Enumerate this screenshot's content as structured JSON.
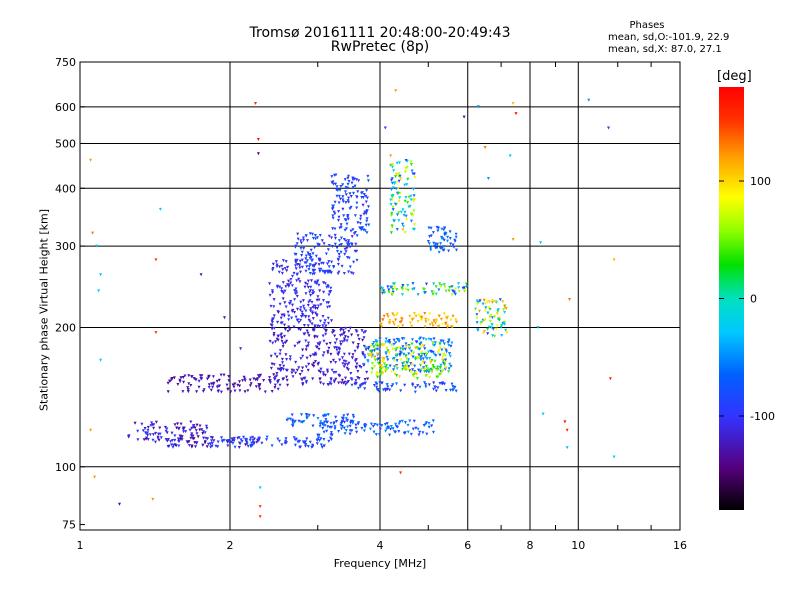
{
  "chart_data": {
    "type": "scatter",
    "title": "Tromsø 20161111 20:48:00-20:49:43",
    "subtitle": "RwPretec (8p)",
    "xlabel": "Frequency [MHz]",
    "ylabel": "Stationary phase Virtual Height [km]",
    "x_scale": "log",
    "y_scale": "log",
    "xlim": [
      1,
      16
    ],
    "ylim": [
      73,
      750
    ],
    "x_ticks": [
      "1",
      "2",
      "4",
      "6",
      "8",
      "10",
      "16"
    ],
    "x_major_grid": [
      2,
      4,
      6,
      8,
      10
    ],
    "x_minor_ticks": [
      3,
      5,
      7,
      9,
      12,
      14
    ],
    "y_ticks": [
      "75",
      "100",
      "200",
      "300",
      "400",
      "500",
      "600",
      "750"
    ],
    "y_major_grid": [
      100,
      200,
      300,
      400,
      500,
      600
    ],
    "grid": true,
    "colorbar": {
      "unit": "[deg]",
      "range": [
        -180,
        180
      ],
      "ticks": [
        "100",
        "0",
        "-100"
      ]
    },
    "phase_header": "Phases",
    "stats": {
      "o": "mean, sd,O:-101.9, 22.9",
      "x": "mean, sd,X: 87.0, 27.1"
    },
    "clusters": [
      {
        "x": [
          1.25,
          1.8
        ],
        "y": [
          113,
          125
        ],
        "phase": [
          -150,
          -100
        ]
      },
      {
        "x": [
          1.5,
          2.3
        ],
        "y": [
          110,
          116
        ],
        "phase": [
          -150,
          -95
        ]
      },
      {
        "x": [
          1.8,
          3.2
        ],
        "y": [
          110,
          116
        ],
        "phase": [
          -120,
          -80
        ]
      },
      {
        "x": [
          3.0,
          5.2
        ],
        "y": [
          117,
          126
        ],
        "phase": [
          -110,
          -60
        ]
      },
      {
        "x": [
          2.6,
          3.6
        ],
        "y": [
          122,
          130
        ],
        "phase": [
          -110,
          -60
        ]
      },
      {
        "x": [
          1.5,
          2.5
        ],
        "y": [
          145,
          158
        ],
        "phase": [
          -150,
          -120
        ]
      },
      {
        "x": [
          2.4,
          3.8
        ],
        "y": [
          150,
          200
        ],
        "phase": [
          -140,
          -110
        ]
      },
      {
        "x": [
          3.5,
          5.7
        ],
        "y": [
          145,
          152
        ],
        "phase": [
          -120,
          -70
        ]
      },
      {
        "x": [
          3.7,
          5.6
        ],
        "y": [
          160,
          190
        ],
        "phase": [
          -100,
          -40
        ]
      },
      {
        "x": [
          3.8,
          5.5
        ],
        "y": [
          155,
          185
        ],
        "phase": [
          20,
          110
        ]
      },
      {
        "x": [
          2.4,
          3.2
        ],
        "y": [
          200,
          280
        ],
        "phase": [
          -130,
          -100
        ]
      },
      {
        "x": [
          2.7,
          3.6
        ],
        "y": [
          260,
          320
        ],
        "phase": [
          -120,
          -80
        ]
      },
      {
        "x": [
          3.2,
          3.8
        ],
        "y": [
          320,
          430
        ],
        "phase": [
          -120,
          -80
        ]
      },
      {
        "x": [
          4.0,
          5.8
        ],
        "y": [
          200,
          215
        ],
        "phase": [
          90,
          130
        ]
      },
      {
        "x": [
          4.0,
          6.0
        ],
        "y": [
          235,
          250
        ],
        "phase": [
          -110,
          90
        ]
      },
      {
        "x": [
          4.2,
          4.7
        ],
        "y": [
          320,
          460
        ],
        "phase": [
          -100,
          110
        ]
      },
      {
        "x": [
          5.0,
          5.7
        ],
        "y": [
          290,
          330
        ],
        "phase": [
          -100,
          -60
        ]
      },
      {
        "x": [
          6.2,
          7.2
        ],
        "y": [
          190,
          230
        ],
        "phase": [
          -100,
          130
        ]
      }
    ],
    "scattered_points": [
      {
        "x": 1.05,
        "y": 460,
        "phase": 120
      },
      {
        "x": 1.06,
        "y": 320,
        "phase": 130
      },
      {
        "x": 1.08,
        "y": 300,
        "phase": -40
      },
      {
        "x": 1.1,
        "y": 260,
        "phase": -40
      },
      {
        "x": 1.09,
        "y": 240,
        "phase": -40
      },
      {
        "x": 1.1,
        "y": 170,
        "phase": -40
      },
      {
        "x": 1.05,
        "y": 120,
        "phase": 120
      },
      {
        "x": 1.07,
        "y": 95,
        "phase": 120
      },
      {
        "x": 1.2,
        "y": 83,
        "phase": -140
      },
      {
        "x": 1.4,
        "y": 85,
        "phase": 120
      },
      {
        "x": 1.42,
        "y": 280,
        "phase": 150
      },
      {
        "x": 1.45,
        "y": 360,
        "phase": -40
      },
      {
        "x": 1.42,
        "y": 195,
        "phase": 150
      },
      {
        "x": 2.25,
        "y": 610,
        "phase": 150
      },
      {
        "x": 2.28,
        "y": 510,
        "phase": 170
      },
      {
        "x": 2.28,
        "y": 475,
        "phase": -150
      },
      {
        "x": 2.3,
        "y": 82,
        "phase": 150
      },
      {
        "x": 2.3,
        "y": 78,
        "phase": 150
      },
      {
        "x": 2.3,
        "y": 90,
        "phase": -40
      },
      {
        "x": 4.1,
        "y": 540,
        "phase": -110
      },
      {
        "x": 4.2,
        "y": 470,
        "phase": 120
      },
      {
        "x": 4.3,
        "y": 650,
        "phase": 120
      },
      {
        "x": 4.4,
        "y": 97,
        "phase": 150
      },
      {
        "x": 5.9,
        "y": 570,
        "phase": -140
      },
      {
        "x": 6.3,
        "y": 600,
        "phase": -60
      },
      {
        "x": 6.5,
        "y": 490,
        "phase": 130
      },
      {
        "x": 6.6,
        "y": 420,
        "phase": -60
      },
      {
        "x": 7.4,
        "y": 610,
        "phase": 110
      },
      {
        "x": 7.5,
        "y": 580,
        "phase": 170
      },
      {
        "x": 7.3,
        "y": 470,
        "phase": -40
      },
      {
        "x": 7.4,
        "y": 310,
        "phase": 120
      },
      {
        "x": 8.3,
        "y": 200,
        "phase": -40
      },
      {
        "x": 8.4,
        "y": 305,
        "phase": -40
      },
      {
        "x": 8.5,
        "y": 130,
        "phase": -40
      },
      {
        "x": 9.4,
        "y": 125,
        "phase": 170
      },
      {
        "x": 9.5,
        "y": 120,
        "phase": 160
      },
      {
        "x": 9.6,
        "y": 230,
        "phase": 130
      },
      {
        "x": 9.5,
        "y": 110,
        "phase": -40
      },
      {
        "x": 10.5,
        "y": 620,
        "phase": -60
      },
      {
        "x": 11.5,
        "y": 540,
        "phase": -110
      },
      {
        "x": 11.8,
        "y": 280,
        "phase": 110
      },
      {
        "x": 11.6,
        "y": 155,
        "phase": 160
      },
      {
        "x": 11.8,
        "y": 105,
        "phase": -40
      },
      {
        "x": 1.95,
        "y": 210,
        "phase": -130
      },
      {
        "x": 1.75,
        "y": 260,
        "phase": -130
      },
      {
        "x": 2.1,
        "y": 180,
        "phase": -120
      }
    ]
  }
}
